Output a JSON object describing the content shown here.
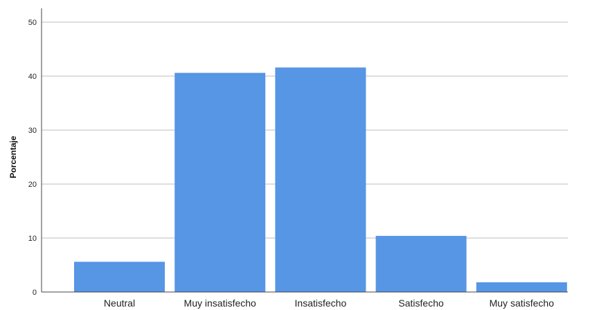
{
  "chart_data": {
    "type": "bar",
    "title": "",
    "xlabel": "",
    "ylabel": "Porcentaje",
    "categories": [
      "Neutral",
      "Muy insatisfecho",
      "Insatisfecho",
      "Satisfecho",
      "Muy satisfecho"
    ],
    "values": [
      5.6,
      40.6,
      41.6,
      10.4,
      1.8
    ],
    "ylim": [
      0,
      50
    ],
    "yticks": [
      "0",
      "10",
      "20",
      "30",
      "40",
      "50"
    ],
    "grid": true,
    "legend": "none",
    "colors": {
      "bar": "#5795e5",
      "gridline": "#bdbdbd",
      "axis": "#444444"
    }
  }
}
